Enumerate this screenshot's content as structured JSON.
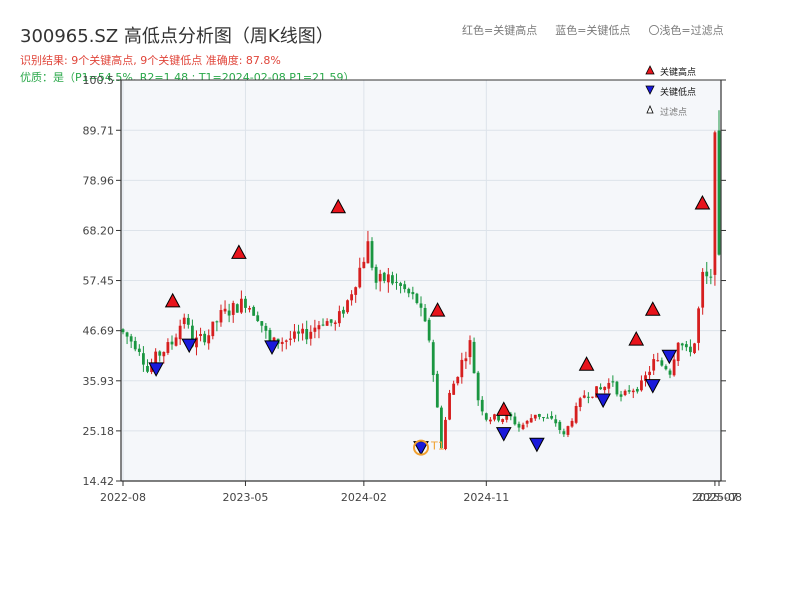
{
  "header": {
    "title": "300965.SZ 高低点分析图（周K线图）",
    "result_line": "识别结果: 9个关键高点, 9个关键低点   准确度: 87.8%",
    "quality_line": "优质：是（P1=54.5%, R2=1.48 ; T1=2024-02-08 P1=21.59）"
  },
  "top_legend": {
    "red": "红色=关键高点",
    "blue": "蓝色=关键低点",
    "light": "〇浅色=过滤点"
  },
  "legend": {
    "high": "关键高点",
    "low": "关键低点",
    "filtered": "过滤点"
  },
  "colors": {
    "up": "#d61f1f",
    "down": "#1a9641",
    "high_marker": "#e8141c",
    "low_marker": "#1a1adb",
    "t1_ring": "#f0a030",
    "plot_bg": "#f5f7fa",
    "grid": "#dde3ea",
    "axis": "#333333"
  },
  "chart_data": {
    "type": "candlestick",
    "title": "300965.SZ 高低点分析图（周K线图）",
    "y_ticks": [
      "14.42",
      "25.18",
      "35.93",
      "46.69",
      "57.45",
      "68.20",
      "78.96",
      "89.71",
      "100.5"
    ],
    "ylim": [
      14.42,
      100.5
    ],
    "x_ticks": [
      "2022-08",
      "2023-05",
      "2024-02",
      "2024-11",
      "2025-07",
      "2025-08"
    ],
    "grid": true,
    "legend_position": "top-right",
    "price_path": [
      [
        0,
        47
      ],
      [
        5,
        43
      ],
      [
        7,
        38
      ],
      [
        9,
        41
      ],
      [
        13,
        44
      ],
      [
        16,
        50
      ],
      [
        18,
        44
      ],
      [
        22,
        46
      ],
      [
        25,
        50
      ],
      [
        29,
        52
      ],
      [
        31,
        53
      ],
      [
        34,
        50
      ],
      [
        37,
        44
      ],
      [
        42,
        45
      ],
      [
        46,
        46
      ],
      [
        50,
        49
      ],
      [
        53,
        48
      ],
      [
        56,
        53
      ],
      [
        59,
        60
      ],
      [
        61,
        65
      ],
      [
        63,
        57
      ],
      [
        66,
        58
      ],
      [
        69,
        56
      ],
      [
        73,
        53
      ],
      [
        76,
        45
      ],
      [
        78,
        30
      ],
      [
        79,
        22
      ],
      [
        81,
        33
      ],
      [
        84,
        40
      ],
      [
        86,
        44
      ],
      [
        88,
        32
      ],
      [
        90,
        28
      ],
      [
        96,
        28
      ],
      [
        98,
        26
      ],
      [
        100,
        27
      ],
      [
        102,
        29
      ],
      [
        104,
        28
      ],
      [
        107,
        27
      ],
      [
        109,
        24
      ],
      [
        111,
        28
      ],
      [
        114,
        33
      ],
      [
        118,
        34
      ],
      [
        121,
        36
      ],
      [
        123,
        32
      ],
      [
        125,
        34
      ],
      [
        128,
        35
      ],
      [
        131,
        40
      ],
      [
        134,
        39
      ],
      [
        135,
        38
      ],
      [
        137,
        45
      ],
      [
        139,
        42
      ],
      [
        141,
        44
      ],
      [
        143,
        58
      ],
      [
        145,
        57
      ],
      [
        146,
        92
      ]
    ],
    "key_highs": [
      {
        "date": "2022-11",
        "price": 51.8
      },
      {
        "date": "2023-03",
        "price": 62.2
      },
      {
        "date": "2023-09",
        "price": 72.0
      },
      {
        "date": "2024-03",
        "price": 49.8
      },
      {
        "date": "2024-07",
        "price": 28.5
      },
      {
        "date": "2024-12",
        "price": 38.2
      },
      {
        "date": "2025-03",
        "price": 43.6
      },
      {
        "date": "2025-04",
        "price": 50.0
      },
      {
        "date": "2025-07",
        "price": 72.8
      }
    ],
    "key_lows": [
      {
        "date": "2022-10",
        "price": 38.5
      },
      {
        "date": "2022-12",
        "price": 43.6
      },
      {
        "date": "2023-05",
        "price": 43.2
      },
      {
        "date": "2024-02",
        "price": 21.59,
        "label": "T1"
      },
      {
        "date": "2024-07",
        "price": 24.6
      },
      {
        "date": "2024-09",
        "price": 22.3
      },
      {
        "date": "2025-01",
        "price": 31.8
      },
      {
        "date": "2025-04",
        "price": 34.9
      },
      {
        "date": "2025-05",
        "price": 41.2
      }
    ],
    "t1": {
      "label": "T1",
      "date": "2024-02-08",
      "price": 21.59
    }
  }
}
